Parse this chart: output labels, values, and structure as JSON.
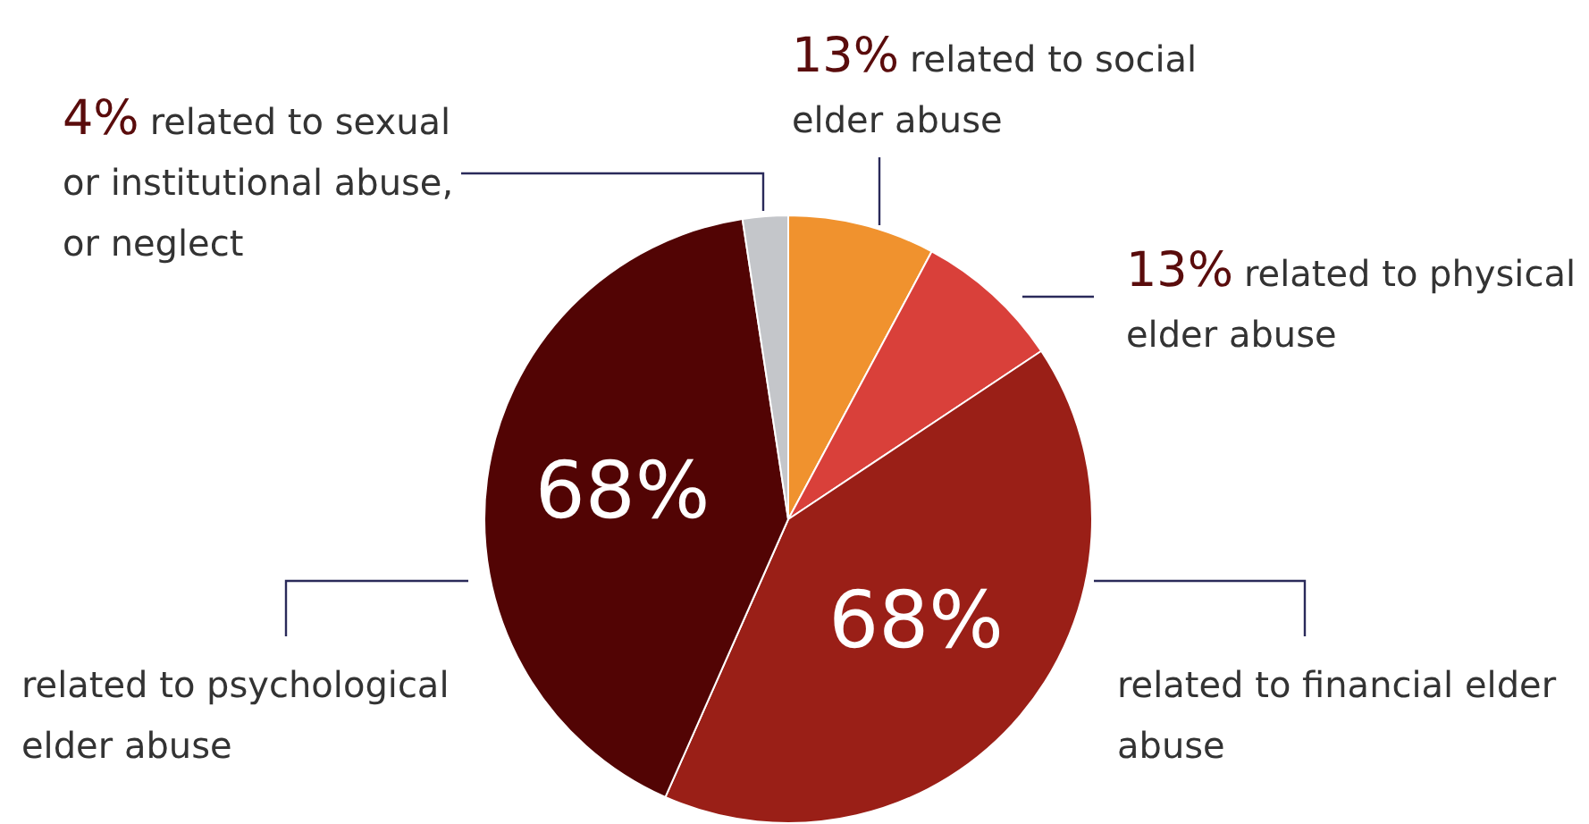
{
  "chart_data": {
    "type": "pie",
    "categories": [
      "related to social elder abuse",
      "related to physical elder abuse",
      "related to financial elder abuse",
      "related to psychological elder abuse",
      "related to sexual or institutional abuse, or neglect"
    ],
    "values": [
      13,
      13,
      68,
      68,
      4
    ],
    "value_labels": [
      "13%",
      "13%",
      "68%",
      "68%",
      "4%"
    ],
    "colors": [
      "#f0922e",
      "#d9403a",
      "#9a1f17",
      "#520404",
      "#c4c6ca"
    ],
    "legend": false
  }
}
